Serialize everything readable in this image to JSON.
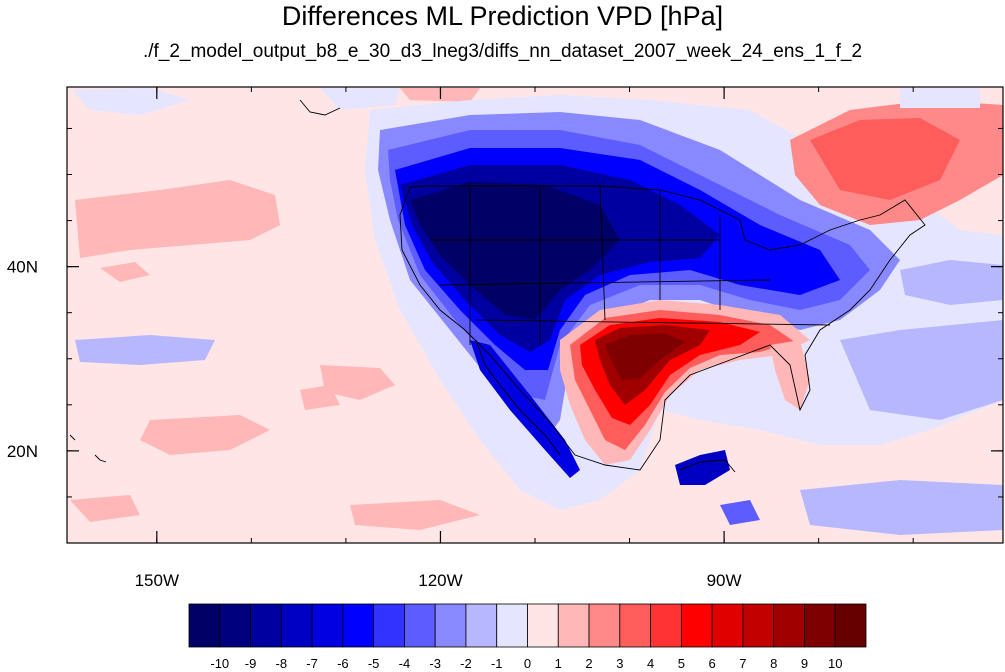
{
  "title": "Differences ML Prediction VPD [hPa]",
  "subtitle": "./f_2_model_output_b8_e_30_d3_lneg3/diffs_nn_dataset_2007_week_24_ens_1_f_2",
  "axes": {
    "lon_ticks": [
      {
        "value": -150,
        "label": "150W"
      },
      {
        "value": -120,
        "label": "120W"
      },
      {
        "value": -90,
        "label": "90W"
      }
    ],
    "lat_ticks": [
      {
        "value": 40,
        "label": "40N"
      },
      {
        "value": 20,
        "label": "20N"
      }
    ],
    "lon_range": [
      -159.5,
      -60.5
    ],
    "lat_range": [
      10,
      59.5
    ]
  },
  "colorbar": {
    "labels": [
      "-10",
      "-9",
      "-8",
      "-7",
      "-6",
      "-5",
      "-4",
      "-3",
      "-2",
      "-1",
      "0",
      "1",
      "2",
      "3",
      "4",
      "5",
      "6",
      "7",
      "8",
      "9",
      "10"
    ],
    "colors": [
      "#000066",
      "#00007f",
      "#0000a0",
      "#0000c2",
      "#0000e0",
      "#0000ff",
      "#3333ff",
      "#5c5cff",
      "#8888ff",
      "#b7b7ff",
      "#e5e5ff",
      "#ffe5e5",
      "#ffb7b7",
      "#ff8888",
      "#ff5c5c",
      "#ff3333",
      "#ff0000",
      "#e00000",
      "#c20000",
      "#a00000",
      "#7f0000",
      "#660000"
    ]
  }
}
